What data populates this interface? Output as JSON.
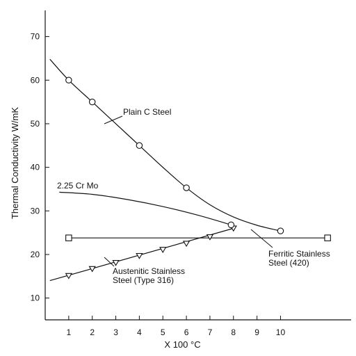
{
  "chart_data": {
    "type": "line",
    "title": "",
    "xlabel": "X 100 °C",
    "ylabel": "Thermal Conductivity W/mK",
    "xlim": [
      0,
      13
    ],
    "ylim": [
      5,
      76
    ],
    "xticks": [
      1,
      2,
      3,
      4,
      5,
      6,
      7,
      8,
      9,
      10
    ],
    "yticks": [
      10,
      20,
      30,
      40,
      50,
      60,
      70
    ],
    "grid": false,
    "legend": "none",
    "series": [
      {
        "name": "Plain C Steel",
        "label_lines": [
          "Plain C Steel"
        ],
        "marker": "circle",
        "points": [
          [
            1,
            60
          ],
          [
            2,
            55
          ],
          [
            4,
            45
          ],
          [
            6,
            35.3
          ],
          [
            10,
            25.4
          ]
        ],
        "curve": [
          [
            0.2,
            64.8
          ],
          [
            1,
            60
          ],
          [
            2,
            55
          ],
          [
            3,
            50
          ],
          [
            4,
            45
          ],
          [
            5,
            40
          ],
          [
            6,
            35.3
          ],
          [
            7,
            31.4
          ],
          [
            8,
            28.6
          ],
          [
            9,
            26.7
          ],
          [
            10,
            25.4
          ]
        ]
      },
      {
        "name": "2.25 Cr Mo",
        "label_lines": [
          "2.25 Cr Mo"
        ],
        "marker": "none",
        "points": [
          [
            7.9,
            26.8
          ]
        ],
        "curve": [
          [
            0.6,
            34.3
          ],
          [
            2,
            33.8
          ],
          [
            3.5,
            32.6
          ],
          [
            5,
            31
          ],
          [
            6.5,
            29
          ],
          [
            7.9,
            26.8
          ]
        ]
      },
      {
        "name": "Ferritic Stainless Steel (420)",
        "label_lines": [
          "Ferritic Stainless",
          "Steel (420)"
        ],
        "marker": "square",
        "points": [
          [
            1,
            23.8
          ],
          [
            12,
            23.8
          ]
        ],
        "curve": [
          [
            1,
            23.8
          ],
          [
            12,
            23.8
          ]
        ]
      },
      {
        "name": "Austenitic Stainless Steel (Type 316)",
        "label_lines": [
          "Austenitic Stainless",
          "Steel (Type 316)"
        ],
        "marker": "triangle-down",
        "points": [
          [
            1,
            15.1
          ],
          [
            2,
            16.7
          ],
          [
            3,
            18.1
          ],
          [
            4,
            19.7
          ],
          [
            5,
            21.1
          ],
          [
            6,
            22.5
          ],
          [
            7,
            24
          ],
          [
            8,
            26
          ]
        ],
        "curve": [
          [
            0.2,
            14
          ],
          [
            8,
            26
          ]
        ]
      }
    ]
  }
}
